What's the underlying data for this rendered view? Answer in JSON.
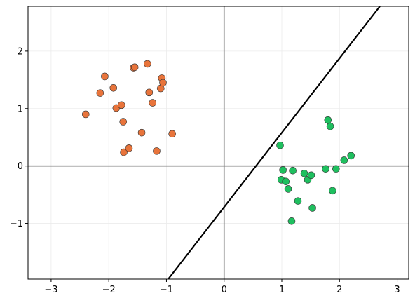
{
  "chart_data": {
    "type": "scatter",
    "title": "",
    "xlabel": "",
    "ylabel": "",
    "xlim": [
      -3.4,
      3.2
    ],
    "ylim": [
      -1.97,
      2.78
    ],
    "xticks": [
      -3,
      -2,
      -1,
      0,
      1,
      2,
      3
    ],
    "yticks": [
      -1,
      0,
      1,
      2
    ],
    "xtick_labels": [
      "−3",
      "−2",
      "−1",
      "0",
      "1",
      "2",
      "3"
    ],
    "ytick_labels": [
      "−1",
      "0",
      "1",
      "2"
    ],
    "grid": true,
    "legend": "none",
    "axes_lines": {
      "x": 0,
      "y": 0,
      "color": "#808080"
    },
    "decision_line": {
      "color": "#000000",
      "points": [
        [
          -0.97,
          -1.97
        ],
        [
          2.7,
          2.78
        ]
      ]
    },
    "series": [
      {
        "color": "#e8743b",
        "points": [
          [
            -2.4,
            0.9
          ],
          [
            -2.15,
            1.27
          ],
          [
            -2.07,
            1.56
          ],
          [
            -1.92,
            1.36
          ],
          [
            -1.87,
            1.01
          ],
          [
            -1.78,
            1.06
          ],
          [
            -1.75,
            0.77
          ],
          [
            -1.74,
            0.24
          ],
          [
            -1.65,
            0.31
          ],
          [
            -1.57,
            1.71
          ],
          [
            -1.55,
            1.72
          ],
          [
            -1.43,
            0.58
          ],
          [
            -1.33,
            1.78
          ],
          [
            -1.3,
            1.28
          ],
          [
            -1.24,
            1.1
          ],
          [
            -1.17,
            0.26
          ],
          [
            -1.1,
            1.35
          ],
          [
            -1.08,
            1.53
          ],
          [
            -1.06,
            1.45
          ],
          [
            -0.9,
            0.56
          ]
        ]
      },
      {
        "color": "#1fbf5f",
        "points": [
          [
            0.97,
            0.36
          ],
          [
            0.99,
            -0.24
          ],
          [
            1.02,
            -0.07
          ],
          [
            1.07,
            -0.27
          ],
          [
            1.11,
            -0.4
          ],
          [
            1.17,
            -0.96
          ],
          [
            1.19,
            -0.08
          ],
          [
            1.28,
            -0.61
          ],
          [
            1.39,
            -0.13
          ],
          [
            1.45,
            -0.24
          ],
          [
            1.51,
            -0.16
          ],
          [
            1.53,
            -0.73
          ],
          [
            1.76,
            -0.05
          ],
          [
            1.8,
            0.8
          ],
          [
            1.84,
            0.69
          ],
          [
            1.88,
            -0.43
          ],
          [
            1.94,
            -0.05
          ],
          [
            2.08,
            0.1
          ],
          [
            2.2,
            0.18
          ]
        ]
      }
    ]
  }
}
